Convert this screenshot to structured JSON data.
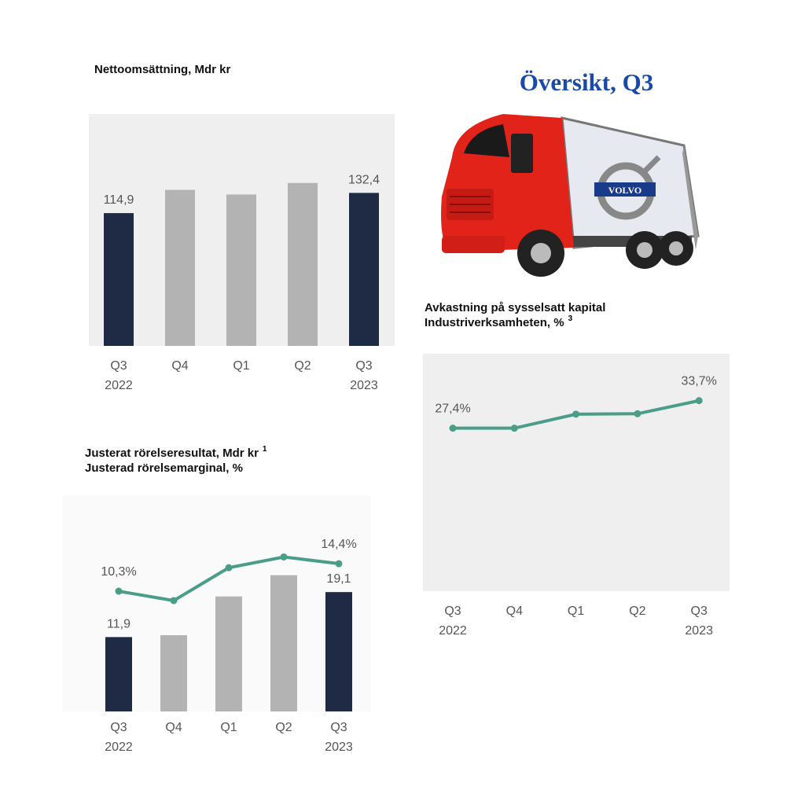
{
  "title": "Översikt, Q3",
  "logo": "VOLVO",
  "chart_data": [
    {
      "type": "bar",
      "title_lines": [
        {
          "text": "Nettoomsättning, Mdr kr"
        }
      ],
      "categories": [
        [
          "Q3",
          "2022"
        ],
        [
          "Q4"
        ],
        [
          "Q1"
        ],
        [
          "Q2"
        ],
        [
          "Q3",
          "2023"
        ]
      ],
      "series": [
        {
          "values": [
            114.9,
            135,
            131,
            141,
            132.4
          ],
          "value_labels": [
            "114,9",
            null,
            null,
            null,
            "132,4"
          ],
          "colors": [
            "#1f2a44",
            "#b3b3b3",
            "#b3b3b3",
            "#b3b3b3",
            "#1f2a44"
          ]
        }
      ]
    },
    {
      "type": "bar",
      "title_lines": [
        {
          "text": "Justerat rörelseresultat, Mdr kr",
          "note": "1"
        },
        {
          "text": "Justerad rörelsemarginal, %"
        }
      ],
      "categories": [
        [
          "Q3",
          "2022"
        ],
        [
          "Q4"
        ],
        [
          "Q1"
        ],
        [
          "Q2"
        ],
        [
          "Q3",
          "2023"
        ]
      ],
      "series": [
        {
          "values": [
            11.9,
            12.2,
            18.4,
            21.8,
            19.1
          ],
          "value_labels": [
            "11,9",
            null,
            null,
            null,
            "19,1"
          ],
          "colors": [
            "#1f2a44",
            "#b3b3b3",
            "#b3b3b3",
            "#b3b3b3",
            "#1f2a44"
          ]
        },
        {
          "type": "line",
          "axis": "y2",
          "color": "#4a9d87",
          "values": [
            10.3,
            8.9,
            13.8,
            15.4,
            14.4
          ],
          "value_labels": [
            "10,3%",
            null,
            null,
            null,
            "14,4%"
          ]
        }
      ]
    },
    {
      "type": "line",
      "title_lines": [
        {
          "text": "Avkastning på sysselsatt kapital"
        },
        {
          "text": "Industriverksamheten, %",
          "note": "3"
        }
      ],
      "categories": [
        [
          "Q3",
          "2022"
        ],
        [
          "Q4"
        ],
        [
          "Q1"
        ],
        [
          "Q2"
        ],
        [
          "Q3",
          "2023"
        ]
      ],
      "series": [
        {
          "color": "#4a9d87",
          "values": [
            27.4,
            27.4,
            30.6,
            30.7,
            33.7
          ],
          "value_labels": [
            "27,4%",
            null,
            null,
            null,
            "33,7%"
          ]
        }
      ]
    }
  ]
}
